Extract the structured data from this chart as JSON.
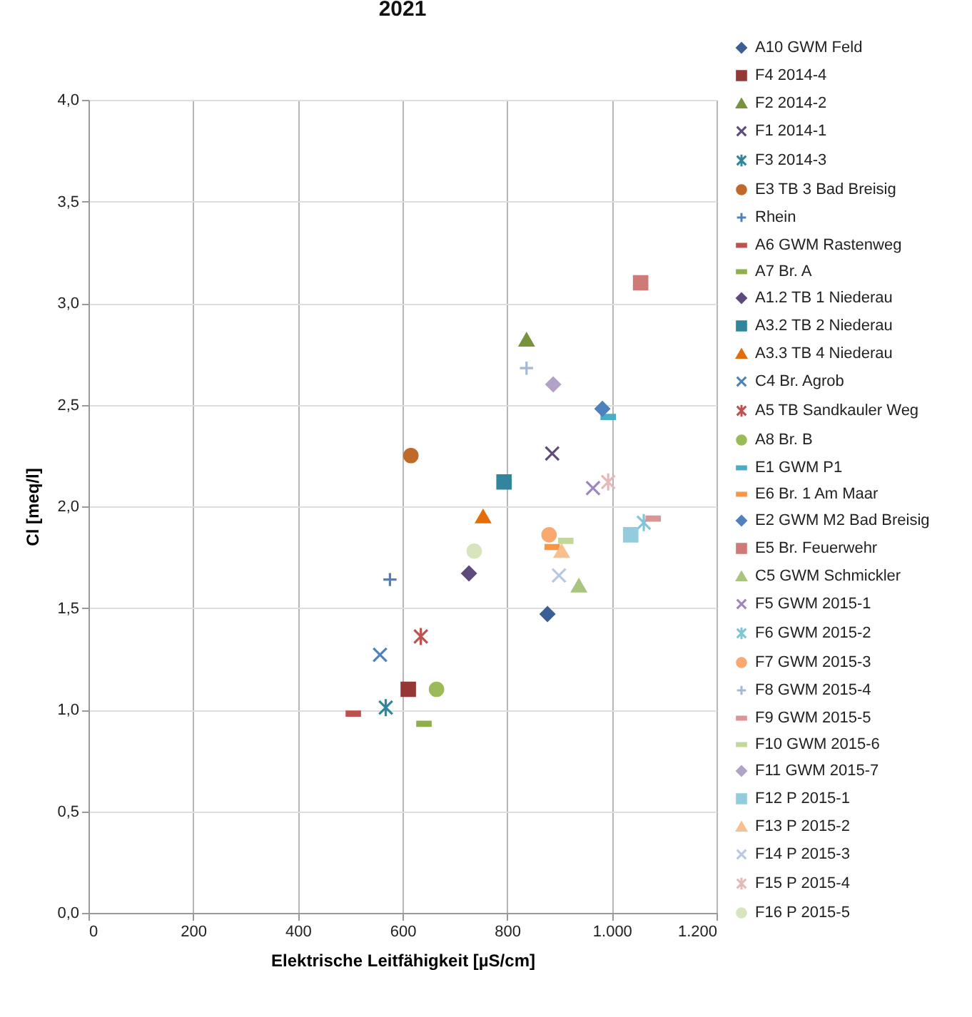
{
  "chart_data": {
    "type": "scatter",
    "title": "2021",
    "xlabel": "Elektrische Leitfähigkeit [µS/cm]",
    "ylabel": "Cl [meq/l]",
    "xlim": [
      0,
      1200
    ],
    "xticks": [
      0,
      200,
      400,
      {
        "value": 600,
        "label": "600"
      },
      800,
      {
        "value": 1000,
        "label": "1.000"
      },
      {
        "value": 1200,
        "label": "1.200"
      }
    ],
    "ylim": [
      0,
      4
    ],
    "yticks": [
      {
        "value": 0,
        "label": "0,0"
      },
      {
        "value": 0.5,
        "label": "0,5"
      },
      {
        "value": 1,
        "label": "1,0"
      },
      {
        "value": 1.5,
        "label": "1,5"
      },
      {
        "value": 2,
        "label": "2,0"
      },
      {
        "value": 2.5,
        "label": "2,5"
      },
      {
        "value": 3,
        "label": "3,0"
      },
      {
        "value": 3.5,
        "label": "3,5"
      },
      {
        "value": 4,
        "label": "4,0"
      }
    ],
    "grid": true,
    "legend": "right",
    "series": [
      {
        "name": "A10 GWM Feld",
        "color": "#3b5f95",
        "marker": "diamond",
        "x": [
          877
        ],
        "values": [
          1.47
        ]
      },
      {
        "name": "F4 2014-4",
        "color": "#953735",
        "marker": "square",
        "x": [
          611
        ],
        "values": [
          1.1
        ]
      },
      {
        "name": "F2 2014-2",
        "color": "#77933c",
        "marker": "triangle",
        "x": [
          837
        ],
        "values": [
          2.82
        ]
      },
      {
        "name": "F1 2014-1",
        "color": "#604a7b",
        "marker": "x",
        "x": [
          886
        ],
        "values": [
          2.26
        ]
      },
      {
        "name": "F3 2014-3",
        "color": "#31859c",
        "marker": "cross",
        "x": [
          568
        ],
        "values": [
          1.01
        ]
      },
      {
        "name": "E3 TB 3 Bad Breisig",
        "color": "#c0692b",
        "marker": "circle",
        "x": [
          616
        ],
        "values": [
          2.25
        ]
      },
      {
        "name": "Rhein",
        "color": "#4f81bd",
        "marker": "plus",
        "x": [
          576
        ],
        "values": [
          1.64
        ]
      },
      {
        "name": "A6 GWM Rastenweg",
        "color": "#c0504d",
        "x": [
          506
        ],
        "values": [
          0.98
        ]
      },
      {
        "name": "A7 Br. A",
        "color": "#8eb04a",
        "x": [
          641
        ],
        "values": [
          0.93
        ]
      },
      {
        "name": "A1.2 TB 1 Niederau",
        "color": "#604a7b",
        "marker": "diamond",
        "x": [
          727
        ],
        "values": [
          1.67
        ]
      },
      {
        "name": "A3.2 TB 2 Niederau",
        "color": "#31859c",
        "marker": "square",
        "x": [
          794
        ],
        "values": [
          2.12
        ]
      },
      {
        "name": "A3.3 TB 4 Niederau",
        "color": "#e46c0a",
        "marker": "triangle",
        "x": [
          754
        ],
        "values": [
          1.95
        ]
      },
      {
        "name": "C4 Br. Agrob",
        "color": "#4f81bd",
        "marker": "x",
        "x": [
          557
        ],
        "values": [
          1.27
        ]
      },
      {
        "name": "A5 TB Sandkauler Weg",
        "color": "#c0504d",
        "marker": "cross",
        "x": [
          635
        ],
        "values": [
          1.36
        ]
      },
      {
        "name": "A8 Br. B",
        "color": "#9bbb59",
        "marker": "circle",
        "x": [
          665
        ],
        "values": [
          1.1
        ]
      },
      {
        "name": "E1 GWM P1",
        "color": "#4bacc6",
        "x": [
          993
        ],
        "values": [
          2.44
        ]
      },
      {
        "name": "E6 Br. 1 Am Maar",
        "color": "#f79646",
        "x": [
          886
        ],
        "values": [
          1.8
        ]
      },
      {
        "name": "E2 GWM M2 Bad Breisig",
        "color": "#4f81bd",
        "marker": "diamond",
        "x": [
          982
        ],
        "values": [
          2.48
        ]
      },
      {
        "name": "E5 Br. Feuerwehr",
        "color": "#d07a78",
        "marker": "square",
        "x": [
          1055
        ],
        "values": [
          3.1
        ]
      },
      {
        "name": "C5 GWM Schmickler",
        "color": "#a9c47f",
        "marker": "triangle",
        "x": [
          937
        ],
        "values": [
          1.61
        ]
      },
      {
        "name": "F5 GWM 2015-1",
        "color": "#9d86bf",
        "marker": "x",
        "x": [
          964
        ],
        "values": [
          2.09
        ]
      },
      {
        "name": "F6 GWM 2015-2",
        "color": "#7fc6db",
        "marker": "cross",
        "x": [
          1061
        ],
        "values": [
          1.92
        ]
      },
      {
        "name": "F7 GWM 2015-3",
        "color": "#f9a870",
        "marker": "circle",
        "x": [
          880
        ],
        "values": [
          1.86
        ]
      },
      {
        "name": "F8 GWM 2015-4",
        "color": "#a5b8d8",
        "marker": "plus",
        "x": [
          837
        ],
        "values": [
          2.68
        ]
      },
      {
        "name": "F9 GWM 2015-5",
        "color": "#d99694",
        "x": [
          1079
        ],
        "values": [
          1.94
        ]
      },
      {
        "name": "F10 GWM 2015-6",
        "color": "#c3d69b",
        "x": [
          912
        ],
        "values": [
          1.83
        ]
      },
      {
        "name": "F11 GWM 2015-7",
        "color": "#b3a2c7",
        "marker": "diamond",
        "x": [
          888
        ],
        "values": [
          2.6
        ]
      },
      {
        "name": "F12 P 2015-1",
        "color": "#93cddd",
        "marker": "square",
        "x": [
          1036
        ],
        "values": [
          1.86
        ]
      },
      {
        "name": "F13 P 2015-2",
        "color": "#fabf8f",
        "marker": "triangle",
        "x": [
          904
        ],
        "values": [
          1.78
        ]
      },
      {
        "name": "F14 P 2015-3",
        "color": "#b9c7e2",
        "marker": "x",
        "x": [
          899
        ],
        "values": [
          1.66
        ]
      },
      {
        "name": "F15 P 2015-4",
        "color": "#e6b9b8",
        "marker": "cross",
        "x": [
          993
        ],
        "values": [
          2.12
        ]
      },
      {
        "name": "F16 P 2015-5",
        "color": "#d7e4bd",
        "marker": "circle",
        "x": [
          737
        ],
        "values": [
          1.78
        ]
      }
    ]
  }
}
